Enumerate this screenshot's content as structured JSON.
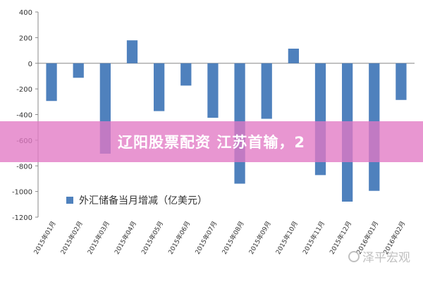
{
  "banner": {
    "text": "辽阳股票配资 江苏首输，2"
  },
  "watermark": {
    "text": "泽平宏观",
    "icon": "wechat-icon"
  },
  "chart_data": {
    "type": "bar",
    "title": "",
    "xlabel": "",
    "ylabel": "",
    "ylim": [
      -1200,
      400
    ],
    "yticks": [
      400,
      200,
      0,
      -200,
      -400,
      -600,
      -800,
      -1000,
      -1200
    ],
    "grid": false,
    "legend_placement": "bottom-left",
    "categories": [
      "2015年01月",
      "2015年02月",
      "2015年03月",
      "2015年04月",
      "2015年05月",
      "2015年06月",
      "2015年07月",
      "2015年08月",
      "2015年09月",
      "2015年10月",
      "2015年11月",
      "2015年12月",
      "2016年01月",
      "2016年02月"
    ],
    "series": [
      {
        "name": "外汇储备当月增减（亿美元）",
        "color": "#4f81bd",
        "values": [
          -294,
          -113,
          -705,
          179,
          -373,
          -174,
          -425,
          -939,
          -433,
          114,
          -872,
          -1079,
          -995,
          -286
        ]
      }
    ]
  }
}
